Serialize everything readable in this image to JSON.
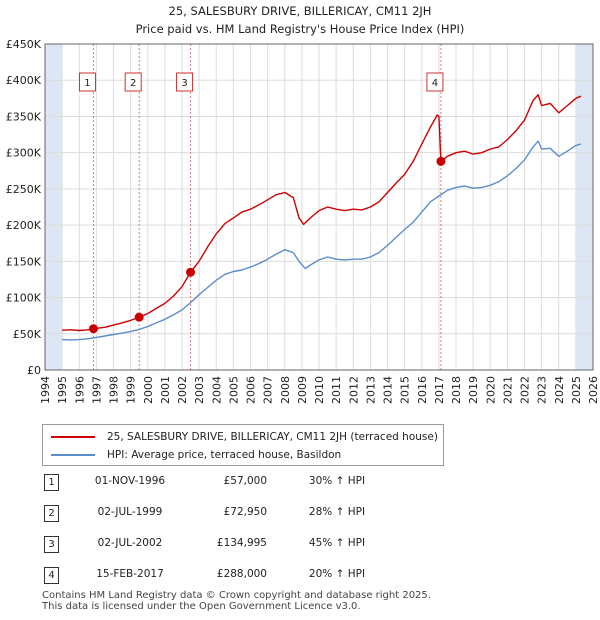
{
  "chart_data": {
    "type": "line",
    "title": "25, SALESBURY DRIVE, BILLERICAY, CM11 2JH",
    "subtitle": "Price paid vs. HM Land Registry's House Price Index (HPI)",
    "xlabel": "",
    "ylabel": "",
    "xlim": [
      1994,
      2026
    ],
    "ylim": [
      0,
      450000
    ],
    "y_ticks": [
      0,
      50000,
      100000,
      150000,
      200000,
      250000,
      300000,
      350000,
      400000,
      450000
    ],
    "y_tick_labels": [
      "£0",
      "£50K",
      "£100K",
      "£150K",
      "£200K",
      "£250K",
      "£300K",
      "£350K",
      "£400K",
      "£450K"
    ],
    "x_ticks": [
      1994,
      1995,
      1996,
      1997,
      1998,
      1999,
      2000,
      2001,
      2002,
      2003,
      2004,
      2005,
      2006,
      2007,
      2008,
      2009,
      2010,
      2011,
      2012,
      2013,
      2014,
      2015,
      2016,
      2017,
      2018,
      2019,
      2020,
      2021,
      2022,
      2023,
      2024,
      2025,
      2026
    ],
    "x_tick_labels": [
      "1994",
      "1995",
      "1996",
      "1997",
      "1998",
      "1999",
      "2000",
      "2001",
      "2002",
      "2003",
      "2004",
      "2005",
      "2006",
      "2007",
      "2008",
      "2009",
      "2010",
      "2011",
      "2012",
      "2013",
      "2014",
      "2015",
      "2016",
      "2017",
      "2018",
      "2019",
      "2020",
      "2021",
      "2022",
      "2023",
      "2024",
      "2025",
      "2026"
    ],
    "grid": true,
    "colors": {
      "property": "#cc0000",
      "hpi": "#5b8dc9",
      "vline": "#d08080",
      "shade": "#dde6f4"
    },
    "series": [
      {
        "name": "25, SALESBURY DRIVE, BILLERICAY, CM11 2JH (terraced house)",
        "points": [
          [
            1995.0,
            55000
          ],
          [
            1995.5,
            55500
          ],
          [
            1996.0,
            54500
          ],
          [
            1996.5,
            55500
          ],
          [
            1996.83,
            57000
          ],
          [
            1997.5,
            59000
          ],
          [
            1998.0,
            62000
          ],
          [
            1998.5,
            65000
          ],
          [
            1999.0,
            68500
          ],
          [
            1999.5,
            72950
          ],
          [
            2000.0,
            78000
          ],
          [
            2000.5,
            85000
          ],
          [
            2001.0,
            92000
          ],
          [
            2001.5,
            102000
          ],
          [
            2002.0,
            115000
          ],
          [
            2002.5,
            134995
          ],
          [
            2003.0,
            150000
          ],
          [
            2003.5,
            170000
          ],
          [
            2004.0,
            188000
          ],
          [
            2004.5,
            202000
          ],
          [
            2005.0,
            210000
          ],
          [
            2005.5,
            218000
          ],
          [
            2006.0,
            222000
          ],
          [
            2006.5,
            228000
          ],
          [
            2007.0,
            235000
          ],
          [
            2007.5,
            242000
          ],
          [
            2008.0,
            245000
          ],
          [
            2008.5,
            238000
          ],
          [
            2008.83,
            210000
          ],
          [
            2009.1,
            201000
          ],
          [
            2009.5,
            210000
          ],
          [
            2010.0,
            220000
          ],
          [
            2010.5,
            225000
          ],
          [
            2011.0,
            222000
          ],
          [
            2011.5,
            220000
          ],
          [
            2012.0,
            222000
          ],
          [
            2012.5,
            221000
          ],
          [
            2013.0,
            225000
          ],
          [
            2013.5,
            232000
          ],
          [
            2014.0,
            245000
          ],
          [
            2014.5,
            258000
          ],
          [
            2015.0,
            270000
          ],
          [
            2015.5,
            288000
          ],
          [
            2016.0,
            312000
          ],
          [
            2016.5,
            335000
          ],
          [
            2016.9,
            352000
          ],
          [
            2017.0,
            350000
          ],
          [
            2017.12,
            288000
          ],
          [
            2017.5,
            295000
          ],
          [
            2018.0,
            300000
          ],
          [
            2018.5,
            302000
          ],
          [
            2019.0,
            298000
          ],
          [
            2019.5,
            300000
          ],
          [
            2020.0,
            305000
          ],
          [
            2020.5,
            308000
          ],
          [
            2021.0,
            318000
          ],
          [
            2021.5,
            330000
          ],
          [
            2022.0,
            345000
          ],
          [
            2022.5,
            372000
          ],
          [
            2022.8,
            380000
          ],
          [
            2023.0,
            365000
          ],
          [
            2023.5,
            368000
          ],
          [
            2024.0,
            355000
          ],
          [
            2024.5,
            365000
          ],
          [
            2025.0,
            375000
          ],
          [
            2025.3,
            378000
          ]
        ]
      },
      {
        "name": "HPI: Average price, terraced house, Basildon",
        "points": [
          [
            1995.0,
            42000
          ],
          [
            1995.5,
            41500
          ],
          [
            1996.0,
            42000
          ],
          [
            1996.5,
            43000
          ],
          [
            1997.0,
            45000
          ],
          [
            1997.5,
            47000
          ],
          [
            1998.0,
            49000
          ],
          [
            1998.5,
            51000
          ],
          [
            1999.0,
            53000
          ],
          [
            1999.5,
            56000
          ],
          [
            2000.0,
            60000
          ],
          [
            2000.5,
            65000
          ],
          [
            2001.0,
            70000
          ],
          [
            2001.5,
            76000
          ],
          [
            2002.0,
            83000
          ],
          [
            2002.5,
            93000
          ],
          [
            2003.0,
            104000
          ],
          [
            2003.5,
            114000
          ],
          [
            2004.0,
            124000
          ],
          [
            2004.5,
            132000
          ],
          [
            2005.0,
            136000
          ],
          [
            2005.5,
            138000
          ],
          [
            2006.0,
            142000
          ],
          [
            2006.5,
            147000
          ],
          [
            2007.0,
            153000
          ],
          [
            2007.5,
            160000
          ],
          [
            2008.0,
            166000
          ],
          [
            2008.5,
            162000
          ],
          [
            2008.83,
            150000
          ],
          [
            2009.2,
            140000
          ],
          [
            2009.5,
            145000
          ],
          [
            2010.0,
            152000
          ],
          [
            2010.5,
            156000
          ],
          [
            2011.0,
            153000
          ],
          [
            2011.5,
            152000
          ],
          [
            2012.0,
            153000
          ],
          [
            2012.5,
            153000
          ],
          [
            2013.0,
            156000
          ],
          [
            2013.5,
            162000
          ],
          [
            2014.0,
            172000
          ],
          [
            2014.5,
            183000
          ],
          [
            2015.0,
            194000
          ],
          [
            2015.5,
            204000
          ],
          [
            2016.0,
            218000
          ],
          [
            2016.5,
            232000
          ],
          [
            2017.0,
            240000
          ],
          [
            2017.5,
            248000
          ],
          [
            2018.0,
            252000
          ],
          [
            2018.5,
            254000
          ],
          [
            2019.0,
            251000
          ],
          [
            2019.5,
            252000
          ],
          [
            2020.0,
            255000
          ],
          [
            2020.5,
            260000
          ],
          [
            2021.0,
            268000
          ],
          [
            2021.5,
            278000
          ],
          [
            2022.0,
            290000
          ],
          [
            2022.5,
            308000
          ],
          [
            2022.8,
            316000
          ],
          [
            2023.0,
            305000
          ],
          [
            2023.5,
            306000
          ],
          [
            2024.0,
            295000
          ],
          [
            2024.5,
            302000
          ],
          [
            2025.0,
            310000
          ],
          [
            2025.3,
            312000
          ]
        ]
      }
    ],
    "sales": [
      {
        "label": "1",
        "x": 1996.83,
        "price": 57000
      },
      {
        "label": "2",
        "x": 1999.5,
        "price": 72950
      },
      {
        "label": "3",
        "x": 2002.5,
        "price": 134995
      },
      {
        "label": "4",
        "x": 2017.12,
        "price": 288000
      }
    ],
    "shaded_regions": [
      [
        1994,
        1995
      ],
      [
        2025.0,
        2026
      ]
    ]
  },
  "legend": {
    "property_label": "25, SALESBURY DRIVE, BILLERICAY, CM11 2JH (terraced house)",
    "hpi_label": "HPI: Average price, terraced house, Basildon"
  },
  "sales_table": [
    {
      "num": "1",
      "date": "01-NOV-1996",
      "price": "£57,000",
      "hpi": "30% ↑ HPI"
    },
    {
      "num": "2",
      "date": "02-JUL-1999",
      "price": "£72,950",
      "hpi": "28% ↑ HPI"
    },
    {
      "num": "3",
      "date": "02-JUL-2002",
      "price": "£134,995",
      "hpi": "45% ↑ HPI"
    },
    {
      "num": "4",
      "date": "15-FEB-2017",
      "price": "£288,000",
      "hpi": "20% ↑ HPI"
    }
  ],
  "footer": {
    "line1": "Contains HM Land Registry data © Crown copyright and database right 2025.",
    "line2": "This data is licensed under the Open Government Licence v3.0."
  }
}
